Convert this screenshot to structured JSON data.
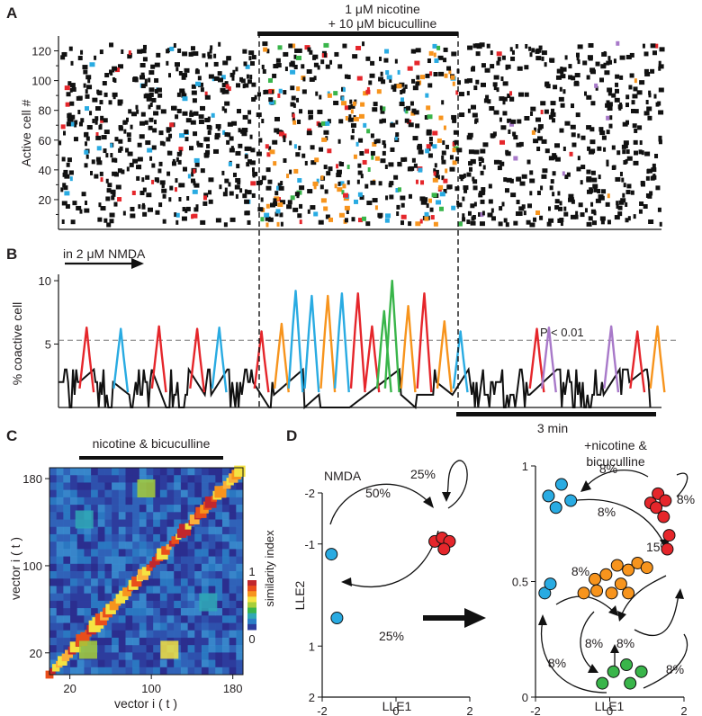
{
  "colors": {
    "black": "#111111",
    "red": "#e5262b",
    "blue": "#29abe2",
    "orange": "#f7941d",
    "green": "#39b54a",
    "purple": "#a879c9",
    "heat_low": "#2b2f8f",
    "heat_high": "#c1272d"
  },
  "chart_data": [
    {
      "panel": "A",
      "type": "scatter",
      "title": "",
      "treatment_label_line1": "1 μM nicotine",
      "treatment_label_line2": "+ 10 μM bicuculline",
      "treatment_window_frames": [
        99,
        199
      ],
      "xlabel": "",
      "ylabel": "Active cell #",
      "xlim": [
        0,
        300
      ],
      "ylim": [
        0,
        130
      ],
      "y_ticks": [
        20,
        40,
        60,
        80,
        100,
        120
      ],
      "raster_events_approx": 1450,
      "colored_assembly_cells_treatment": {
        "blue": 24,
        "orange": 38,
        "green": 14,
        "red": 22
      },
      "colored_assembly_cells_after": {
        "purple": 8
      }
    },
    {
      "panel": "B",
      "type": "line",
      "title": "",
      "annotation": "in 2 μM NMDA",
      "threshold_label": "P < 0.01",
      "threshold_value": 5.3,
      "scalebar_label": "3 min",
      "xlabel": "",
      "ylabel": "% coactive cell",
      "xlim": [
        0,
        300
      ],
      "ylim": [
        0,
        10.5
      ],
      "y_ticks": [
        5,
        10
      ],
      "baseline_level_approx": [
        0,
        3
      ],
      "peaks": [
        {
          "frame": 14,
          "value": 6.3,
          "color": "red"
        },
        {
          "frame": 31,
          "value": 6.2,
          "color": "blue"
        },
        {
          "frame": 50,
          "value": 6.4,
          "color": "red"
        },
        {
          "frame": 69,
          "value": 6.2,
          "color": "red"
        },
        {
          "frame": 80,
          "value": 6.3,
          "color": "blue"
        },
        {
          "frame": 101,
          "value": 6.0,
          "color": "red"
        },
        {
          "frame": 111,
          "value": 6.6,
          "color": "orange"
        },
        {
          "frame": 118,
          "value": 9.2,
          "color": "blue"
        },
        {
          "frame": 126,
          "value": 8.8,
          "color": "blue"
        },
        {
          "frame": 134,
          "value": 8.8,
          "color": "orange"
        },
        {
          "frame": 141,
          "value": 9.0,
          "color": "blue"
        },
        {
          "frame": 149,
          "value": 9.0,
          "color": "red"
        },
        {
          "frame": 156,
          "value": 6.4,
          "color": "red"
        },
        {
          "frame": 162,
          "value": 7.6,
          "color": "green"
        },
        {
          "frame": 166,
          "value": 10.0,
          "color": "green"
        },
        {
          "frame": 174,
          "value": 8.0,
          "color": "orange"
        },
        {
          "frame": 182,
          "value": 9.0,
          "color": "red"
        },
        {
          "frame": 192,
          "value": 6.8,
          "color": "orange"
        },
        {
          "frame": 200,
          "value": 6.0,
          "color": "blue"
        },
        {
          "frame": 238,
          "value": 6.2,
          "color": "red"
        },
        {
          "frame": 244,
          "value": 6.3,
          "color": "purple"
        },
        {
          "frame": 275,
          "value": 6.4,
          "color": "purple"
        },
        {
          "frame": 288,
          "value": 6.0,
          "color": "red"
        },
        {
          "frame": 298,
          "value": 6.4,
          "color": "orange"
        }
      ]
    },
    {
      "panel": "C",
      "type": "heatmap",
      "title": "nicotine & bicuculline",
      "xlabel": "vector i ( t )",
      "ylabel": "vector i ( t )",
      "x_ticks": [
        20,
        100,
        180
      ],
      "y_ticks": [
        20,
        100,
        180
      ],
      "colorbar_label": "similarity index",
      "colorbar_ticks": [
        0,
        1
      ],
      "range": [
        0,
        1
      ],
      "treatment_vectors": [
        33,
        170
      ]
    },
    {
      "panel": "D",
      "type": "scatter",
      "title": "NMDA",
      "title_right_line1": "+nicotine &",
      "title_right_line2": "bicuculline",
      "left_plot": {
        "xlabel": "LLE1",
        "ylabel": "LLE2",
        "x_ticks": [
          -2,
          0,
          2
        ],
        "y_ticks": [
          -2,
          -1,
          1,
          2
        ],
        "xlim": [
          -2,
          2
        ],
        "ylim": [
          -2,
          2
        ],
        "points": [
          {
            "x": -1.75,
            "y": -0.8,
            "color": "blue"
          },
          {
            "x": -1.6,
            "y": 0.45,
            "color": "blue"
          },
          {
            "x": 1.05,
            "y": -1.05,
            "color": "red"
          },
          {
            "x": 1.25,
            "y": -1.12,
            "color": "red"
          },
          {
            "x": 1.45,
            "y": -1.05,
            "color": "red"
          },
          {
            "x": 1.3,
            "y": -0.9,
            "color": "red"
          }
        ],
        "transitions": [
          {
            "label": "50%"
          },
          {
            "label": "25%"
          },
          {
            "label": "25%"
          }
        ]
      },
      "right_plot": {
        "xlabel": "LLE1",
        "ylabel": "",
        "x_ticks": [
          -2,
          0,
          2
        ],
        "y_ticks": [
          0,
          0.5,
          1
        ],
        "xlim": [
          -2,
          2
        ],
        "ylim": [
          0,
          1
        ],
        "points": [
          {
            "x": -1.3,
            "y": 0.92,
            "color": "blue"
          },
          {
            "x": -1.65,
            "y": 0.87,
            "color": "blue"
          },
          {
            "x": -1.45,
            "y": 0.82,
            "color": "blue"
          },
          {
            "x": -1.05,
            "y": 0.85,
            "color": "blue"
          },
          {
            "x": -1.75,
            "y": 0.45,
            "color": "blue"
          },
          {
            "x": -1.6,
            "y": 0.49,
            "color": "blue"
          },
          {
            "x": 1.1,
            "y": 0.84,
            "color": "red"
          },
          {
            "x": 1.3,
            "y": 0.88,
            "color": "red"
          },
          {
            "x": 1.5,
            "y": 0.85,
            "color": "red"
          },
          {
            "x": 1.25,
            "y": 0.82,
            "color": "red"
          },
          {
            "x": 1.45,
            "y": 0.78,
            "color": "red"
          },
          {
            "x": 1.55,
            "y": 0.64,
            "color": "red"
          },
          {
            "x": 1.6,
            "y": 0.7,
            "color": "red"
          },
          {
            "x": -0.4,
            "y": 0.51,
            "color": "orange"
          },
          {
            "x": -0.1,
            "y": 0.53,
            "color": "orange"
          },
          {
            "x": 0.2,
            "y": 0.57,
            "color": "orange"
          },
          {
            "x": 0.5,
            "y": 0.55,
            "color": "orange"
          },
          {
            "x": 0.75,
            "y": 0.58,
            "color": "orange"
          },
          {
            "x": 1.0,
            "y": 0.56,
            "color": "orange"
          },
          {
            "x": 0.3,
            "y": 0.49,
            "color": "orange"
          },
          {
            "x": -0.7,
            "y": 0.45,
            "color": "orange"
          },
          {
            "x": -0.35,
            "y": 0.46,
            "color": "orange"
          },
          {
            "x": 0.05,
            "y": 0.45,
            "color": "orange"
          },
          {
            "x": 0.5,
            "y": 0.45,
            "color": "orange"
          },
          {
            "x": -0.2,
            "y": 0.06,
            "color": "green"
          },
          {
            "x": 0.1,
            "y": 0.11,
            "color": "green"
          },
          {
            "x": 0.45,
            "y": 0.14,
            "color": "green"
          },
          {
            "x": 0.85,
            "y": 0.11,
            "color": "green"
          },
          {
            "x": 0.55,
            "y": 0.06,
            "color": "green"
          }
        ],
        "transitions": [
          {
            "label": "8%"
          },
          {
            "label": "8%"
          },
          {
            "label": "8%"
          },
          {
            "label": "8%"
          },
          {
            "label": "8%"
          },
          {
            "label": "8%"
          },
          {
            "label": "8%"
          },
          {
            "label": "8%"
          },
          {
            "label": "15%"
          }
        ]
      }
    }
  ]
}
